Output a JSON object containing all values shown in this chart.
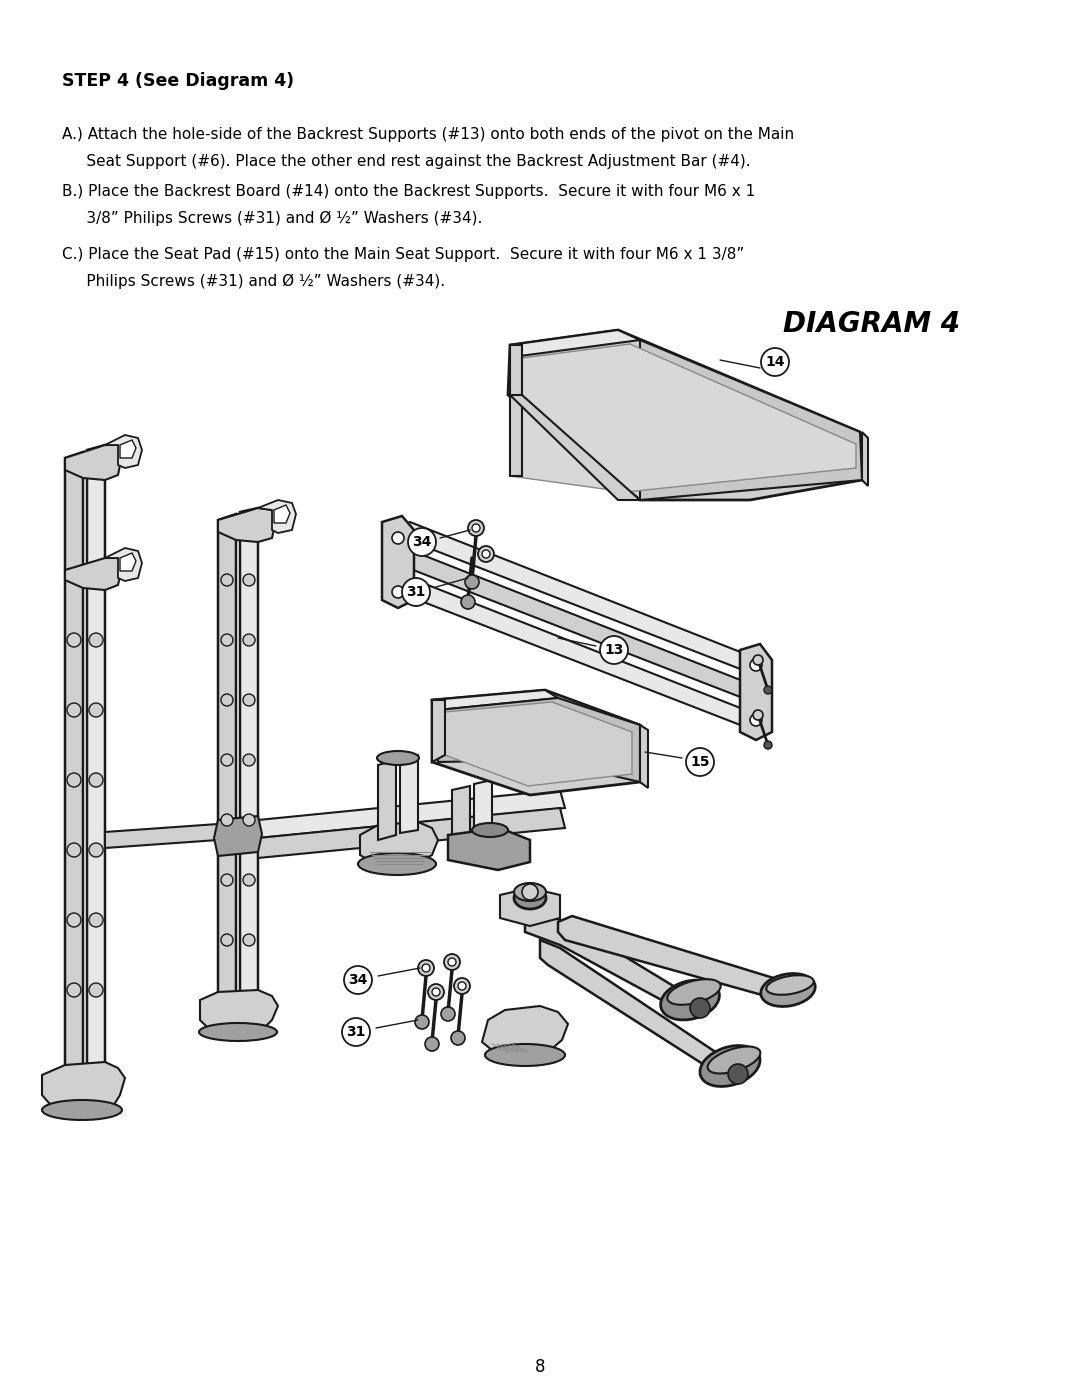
{
  "bg_color": "#ffffff",
  "title": "DIAGRAM 4",
  "page_number": "8",
  "step_title": "STEP 4 (See Diagram 4)",
  "line_A1": "A.) Attach the hole-side of the Backrest Supports (#13) onto both ends of the pivot on the Main",
  "line_A2": "     Seat Support (#6). Place the other end rest against the Backrest Adjustment Bar (#4).",
  "line_B1": "B.) Place the Backrest Board (#14) onto the Backrest Supports.  Secure it with four M6 x 1",
  "line_B2": "     3/8” Philips Screws (#31) and Ø ½” Washers (#34).",
  "line_C1": "C.) Place the Seat Pad (#15) onto the Main Seat Support.  Secure it with four M6 x 1 3/8”",
  "line_C2": "     Philips Screws (#31) and Ø ½” Washers (#34).",
  "text_color": "#000000",
  "line_color": "#1a1a1a",
  "fill_light": "#e8e8e8",
  "fill_mid": "#d0d0d0",
  "fill_dark": "#a0a0a0"
}
